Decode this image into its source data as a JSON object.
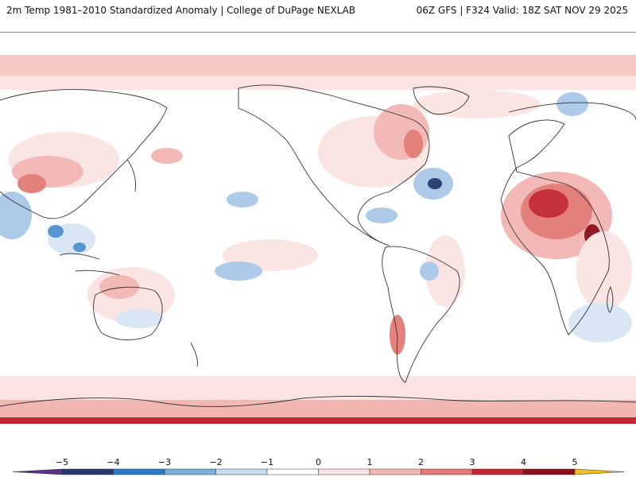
{
  "header": {
    "left_title": "2m Temp 1981–2010 Standardized Anomaly | College of DuPage NEXLAB",
    "right_title": "06Z GFS | F324 Valid: 18Z SAT NOV 29 2025"
  },
  "colorbar": {
    "ticks": [
      "−5",
      "−4",
      "−3",
      "−2",
      "−1",
      "0",
      "1",
      "2",
      "3",
      "4",
      "5"
    ],
    "colors": [
      "#5b2f8a",
      "#22386e",
      "#2c7bc2",
      "#79afdb",
      "#c6dcef",
      "#ffffff",
      "#fbe3e3",
      "#f2b6b3",
      "#e27a76",
      "#c22630",
      "#8c0f1a",
      "#f2c018"
    ]
  },
  "palette": {
    "warm_light": "#fbe3e3",
    "warm_mid": "#f2b6b3",
    "warm_strong": "#e27a76",
    "warm_hot": "#c22630",
    "cool_light": "#d7e6f4",
    "cool_mid": "#a9c8e8",
    "cool_strong": "#4f8fcf",
    "cool_deep": "#22386e",
    "coast": "#333333"
  }
}
